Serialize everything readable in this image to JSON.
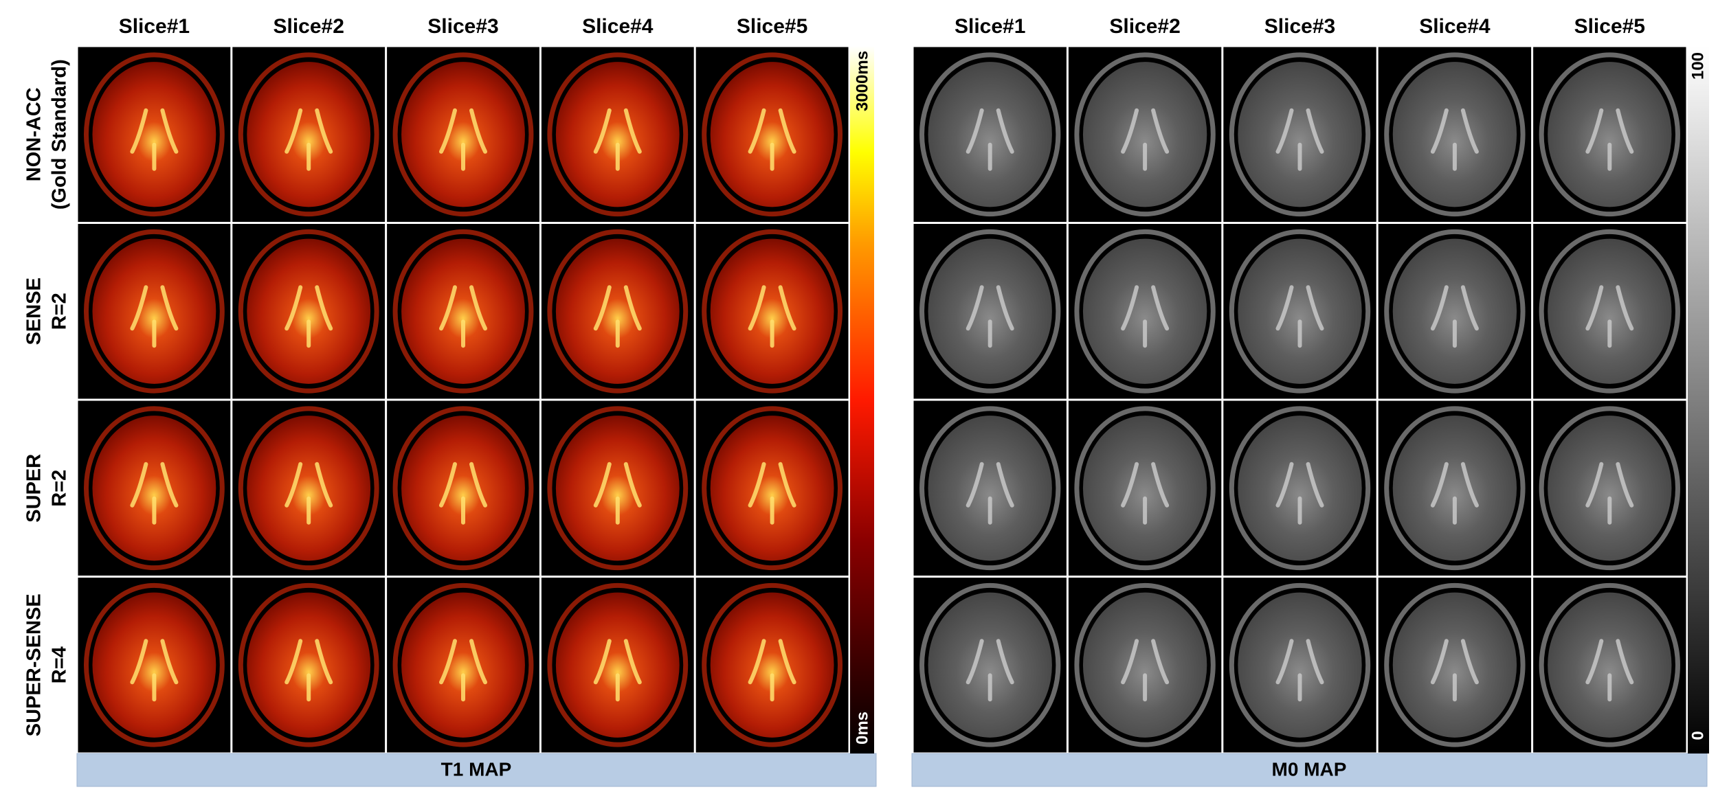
{
  "t1_panel": {
    "column_headers": [
      "Slice#1",
      "Slice#2",
      "Slice#3",
      "Slice#4",
      "Slice#5"
    ],
    "row_labels": [
      [
        "NON-ACC",
        "(Gold Standard)"
      ],
      [
        "SENSE",
        "R=2"
      ],
      [
        "SUPER",
        "R=2"
      ],
      [
        "SUPER-SENSE",
        "R=4"
      ]
    ],
    "colorbar": {
      "max_label": "3000ms",
      "min_label": "0ms"
    },
    "footer": "T1 MAP"
  },
  "m0_panel": {
    "column_headers": [
      "Slice#1",
      "Slice#2",
      "Slice#3",
      "Slice#4",
      "Slice#5"
    ],
    "colorbar": {
      "max_label": "100",
      "min_label": "0"
    },
    "footer": "M0 MAP"
  }
}
